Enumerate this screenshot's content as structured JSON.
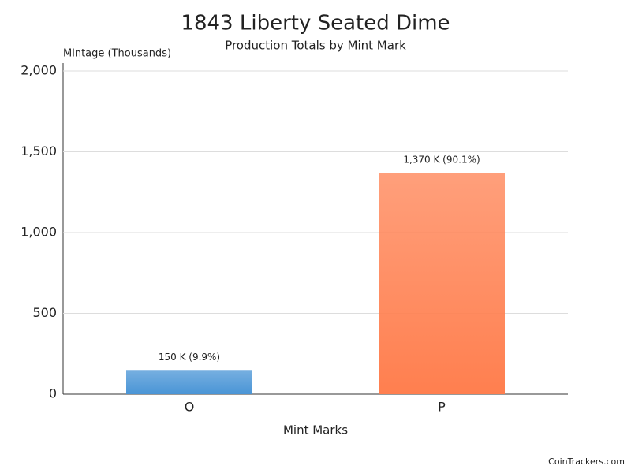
{
  "chart_data": {
    "type": "bar",
    "title": "1843 Liberty Seated Dime",
    "subtitle": "Production Totals by Mint Mark",
    "y_axis_label": "Mintage (Thousands)",
    "x_axis_label": "Mint Marks",
    "categories": [
      "O",
      "P"
    ],
    "values": [
      150,
      1370
    ],
    "value_labels": [
      "150 K (9.9%)",
      "1,370 K (90.1%)"
    ],
    "colors": [
      "#4a95d6",
      "#ff7f4f"
    ],
    "ylim": [
      0,
      2000
    ],
    "yticks": [
      0,
      500,
      {
        "value": 1000,
        "label": "1,000"
      },
      {
        "value": 1500,
        "label": "1,500"
      },
      {
        "value": 2000,
        "label": "2,000"
      }
    ],
    "grid": true,
    "source": "CoinTrackers.com"
  }
}
